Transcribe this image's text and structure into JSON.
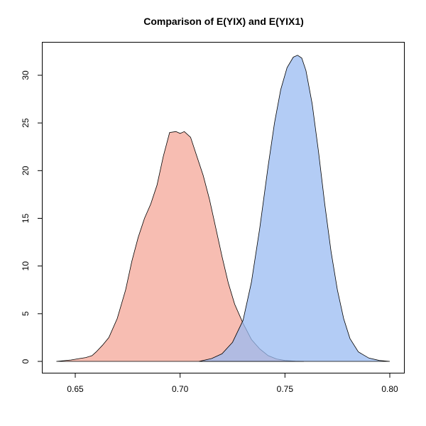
{
  "chart_data": {
    "type": "area",
    "title": "Comparison of E(YIX) and E(YIX1)",
    "xlabel": "",
    "ylabel": "",
    "xlim": [
      0.64,
      0.8
    ],
    "ylim": [
      0,
      32
    ],
    "x_ticks": [
      0.65,
      0.7,
      0.75,
      0.8
    ],
    "x_tick_labels": [
      "0.65",
      "0.70",
      "0.75",
      "0.80"
    ],
    "y_ticks": [
      0,
      5,
      10,
      15,
      20,
      25,
      30
    ],
    "y_tick_labels": [
      "0",
      "5",
      "10",
      "15",
      "20",
      "25",
      "30"
    ],
    "grid": false,
    "legend": "none",
    "series": [
      {
        "color": "#f4a191",
        "opacity": 0.7,
        "x": [
          0.641,
          0.648,
          0.652,
          0.655,
          0.658,
          0.66,
          0.663,
          0.666,
          0.67,
          0.674,
          0.677,
          0.68,
          0.683,
          0.686,
          0.689,
          0.692,
          0.695,
          0.698,
          0.7,
          0.702,
          0.705,
          0.708,
          0.711,
          0.714,
          0.717,
          0.72,
          0.723,
          0.726,
          0.73,
          0.734,
          0.738,
          0.742,
          0.746,
          0.75,
          0.755,
          0.759
        ],
        "y": [
          0.0,
          0.15,
          0.3,
          0.4,
          0.6,
          1.0,
          1.7,
          2.5,
          4.5,
          7.5,
          10.5,
          13.0,
          15.0,
          16.5,
          18.5,
          21.5,
          24.0,
          24.1,
          23.9,
          24.1,
          23.5,
          21.5,
          19.5,
          17.0,
          14.0,
          11.0,
          8.2,
          6.0,
          4.0,
          2.3,
          1.3,
          0.6,
          0.25,
          0.1,
          0.03,
          0.0
        ]
      },
      {
        "color": "#99bbf2",
        "opacity": 0.75,
        "x": [
          0.709,
          0.715,
          0.72,
          0.725,
          0.73,
          0.734,
          0.738,
          0.742,
          0.745,
          0.748,
          0.751,
          0.754,
          0.756,
          0.758,
          0.76,
          0.763,
          0.766,
          0.769,
          0.772,
          0.775,
          0.778,
          0.781,
          0.785,
          0.79,
          0.795,
          0.8
        ],
        "y": [
          0.0,
          0.3,
          0.8,
          2.0,
          4.3,
          8.3,
          14.0,
          20.5,
          25.0,
          28.5,
          30.8,
          31.9,
          32.1,
          31.8,
          30.5,
          27.0,
          22.0,
          16.5,
          11.5,
          7.5,
          4.5,
          2.4,
          1.0,
          0.35,
          0.1,
          0.0
        ]
      }
    ]
  }
}
